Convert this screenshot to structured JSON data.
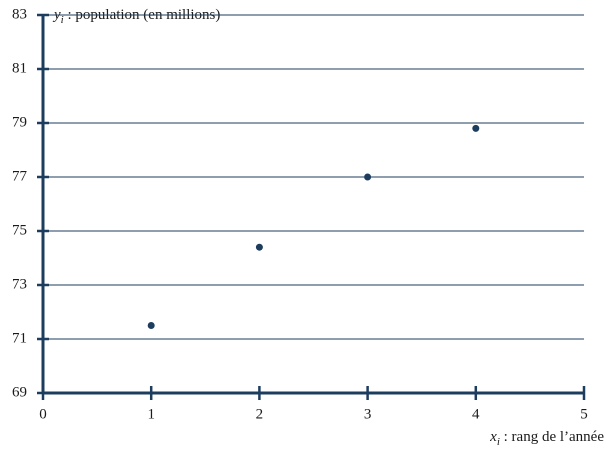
{
  "chart_data": {
    "type": "scatter",
    "y_label": {
      "symbol": "y",
      "subscript": "i",
      "text": " : population (en millions)"
    },
    "x_label": {
      "symbol": "x",
      "subscript": "i",
      "text": " : rang de l’année"
    },
    "x": [
      1,
      2,
      3,
      4
    ],
    "values": [
      71.5,
      74.4,
      77,
      78.8
    ],
    "color": "#1d3d5f",
    "xlim": [
      0,
      5
    ],
    "xticks": [
      0,
      1,
      2,
      3,
      4,
      5
    ],
    "ylim": [
      69,
      83
    ],
    "yticks": [
      69,
      71,
      73,
      75,
      77,
      79,
      81,
      83
    ],
    "grid": true
  }
}
